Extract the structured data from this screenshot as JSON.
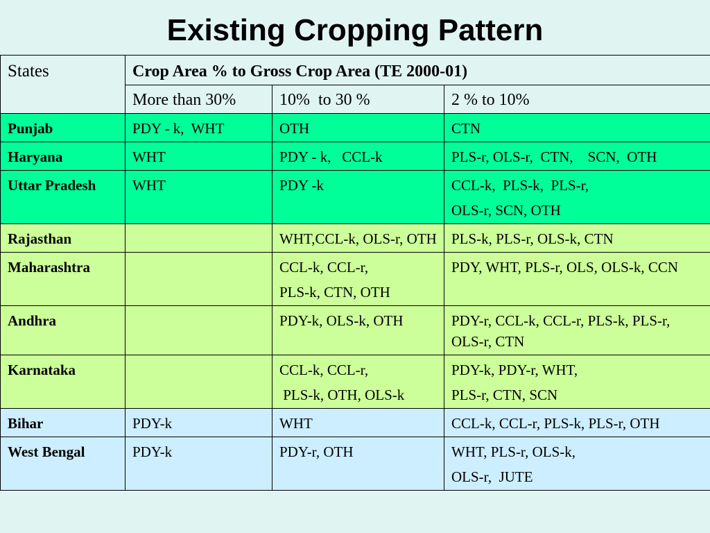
{
  "title": "Existing Cropping Pattern",
  "headers": {
    "states": "States",
    "group": "Crop Area % to Gross Crop Area (TE 2000-01)",
    "col1": "More than 30%",
    "col2": "10%  to 30 %",
    "col3": "2 % to 10%"
  },
  "colors": {
    "background": "#e0f5f2",
    "green_rows": "#00ff99",
    "yellow_rows": "#ccff99",
    "blue_rows": "#cceeff"
  },
  "rows": [
    {
      "state": "Punjab",
      "c1": "PDY - k,  WHT",
      "c2": "OTH",
      "c3": "CTN"
    },
    {
      "state": "Haryana",
      "c1": "WHT",
      "c2": "PDY - k,   CCL-k",
      "c3": "PLS-r, OLS-r,  CTN,    SCN,  OTH"
    },
    {
      "state": "Uttar Pradesh",
      "c1": "WHT",
      "c2": "PDY -k",
      "c3a": "CCL-k,  PLS-k,  PLS-r,",
      "c3b": "OLS-r, SCN, OTH"
    },
    {
      "state": "Rajasthan",
      "c1": "",
      "c2": "WHT,CCL-k, OLS-r, OTH",
      "c3": "PLS-k, PLS-r, OLS-k, CTN"
    },
    {
      "state": "Maharashtra",
      "c1": "",
      "c2a": "CCL-k, CCL-r,",
      "c2b": "PLS-k, CTN, OTH",
      "c3": "PDY, WHT, PLS-r, OLS, OLS-k, CCN"
    },
    {
      "state": "Andhra",
      "c1": "",
      "c2": "PDY-k, OLS-k, OTH",
      "c3": "PDY-r, CCL-k, CCL-r, PLS-k, PLS-r, OLS-r, CTN"
    },
    {
      "state": "Karnataka",
      "c1": "",
      "c2a": "CCL-k, CCL-r,",
      "c2b": " PLS-k, OTH, OLS-k",
      "c3a": "PDY-k, PDY-r, WHT,",
      "c3b": "PLS-r, CTN, SCN"
    },
    {
      "state": "Bihar",
      "c1": "PDY-k",
      "c2": "WHT",
      "c3": "CCL-k, CCL-r, PLS-k, PLS-r, OTH"
    },
    {
      "state": "West Bengal",
      "c1": "PDY-k",
      "c2": "PDY-r, OTH",
      "c3a": "WHT, PLS-r, OLS-k,",
      "c3b": "OLS-r,  JUTE"
    }
  ]
}
